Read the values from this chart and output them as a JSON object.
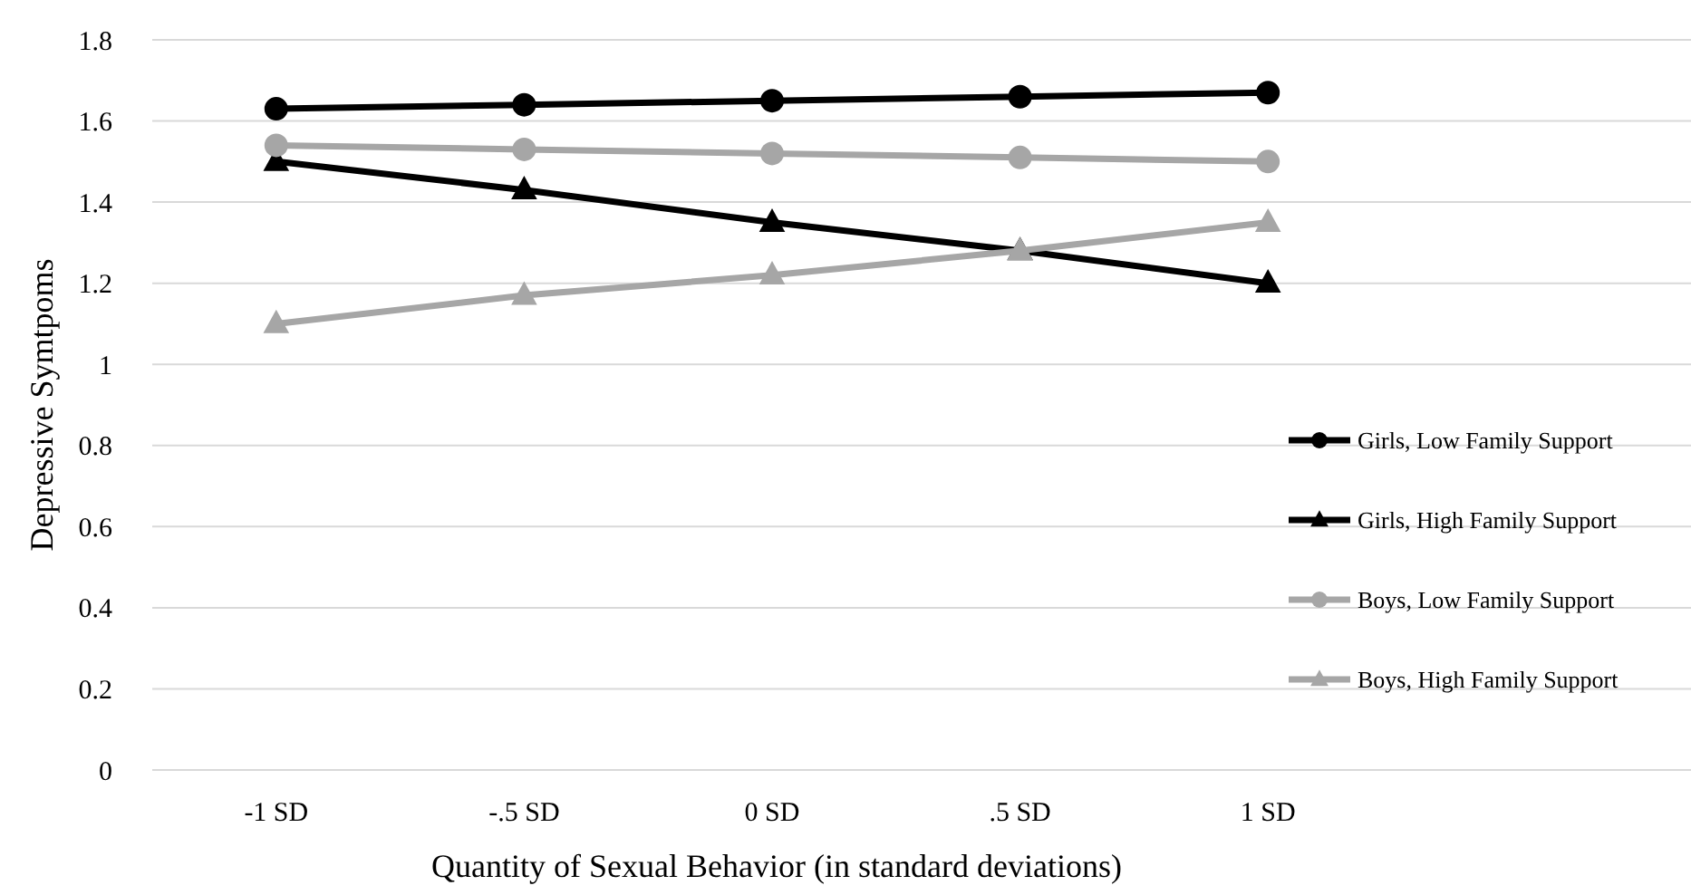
{
  "chart_data": {
    "type": "line",
    "xlabel": "Quantity of Sexual Behavior (in standard deviations)",
    "ylabel": "Depressive Symtpoms",
    "categories": [
      "-1 SD",
      "-.5 SD",
      "0 SD",
      ".5 SD",
      "1 SD"
    ],
    "ylim": [
      0,
      1.8
    ],
    "yticks": [
      0,
      {
        "value": 0.2,
        "label": "0.2"
      },
      {
        "value": 0.4,
        "label": "0.4"
      },
      {
        "value": 0.6,
        "label": "0.6"
      },
      {
        "value": 0.8,
        "label": "0.8"
      },
      1,
      {
        "value": 1.2,
        "label": "1.2"
      },
      {
        "value": 1.4,
        "label": "1.4"
      },
      {
        "value": 1.6,
        "label": "1.6"
      },
      {
        "value": 1.8,
        "label": "1.8"
      }
    ],
    "grid": "y",
    "legend": "right",
    "line_style": "solid",
    "series": [
      {
        "name": "Girls, Low Family Support",
        "color": "#000000",
        "marker": "circle",
        "values": [
          1.63,
          1.64,
          1.65,
          1.66,
          1.67
        ]
      },
      {
        "name": "Girls, High Family Support",
        "color": "#000000",
        "marker": "triangle",
        "values": [
          1.5,
          1.43,
          1.35,
          1.28,
          1.2
        ]
      },
      {
        "name": "Boys, Low Family Support",
        "color": "#a6a6a6",
        "marker": "circle",
        "values": [
          1.54,
          1.53,
          1.52,
          1.51,
          1.5
        ]
      },
      {
        "name": "Boys, High Family Support",
        "color": "#a6a6a6",
        "marker": "triangle",
        "values": [
          1.1,
          1.17,
          1.22,
          1.28,
          1.35
        ]
      }
    ]
  }
}
